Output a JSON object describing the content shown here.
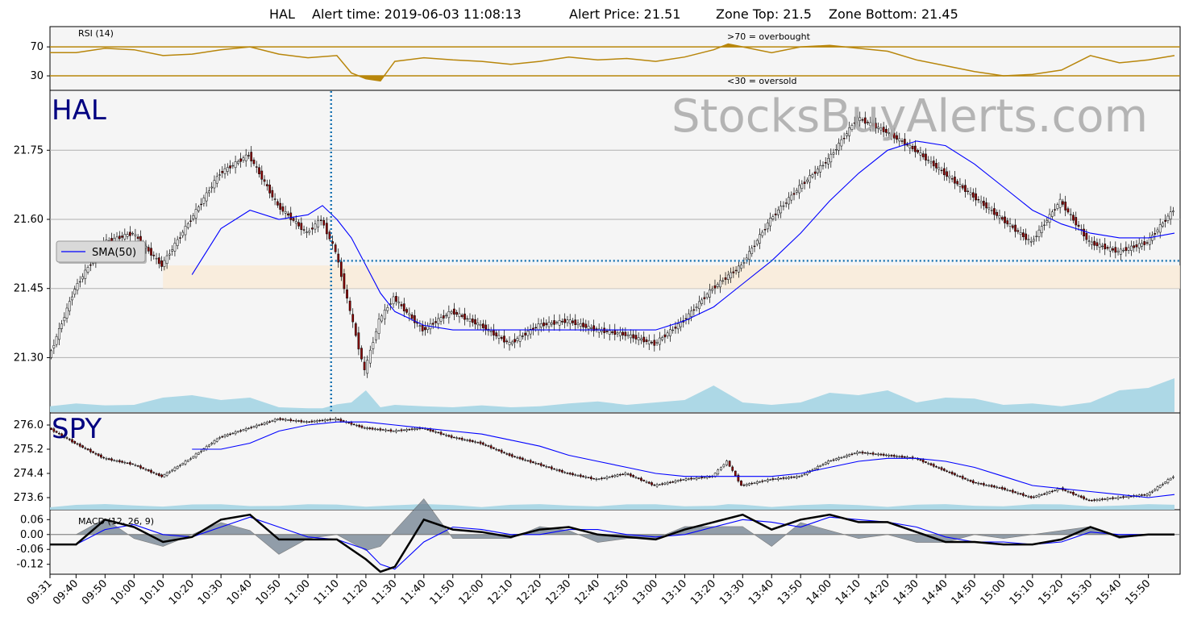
{
  "title": {
    "symbol": "HAL",
    "alert_time": "Alert time: 2019-06-03 11:08:13",
    "alert_price": "Alert Price: 21.51",
    "zone_top": "Zone Top: 21.5",
    "zone_bottom": "Zone Bottom: 21.45"
  },
  "watermark": "StocksBuyAlerts.com",
  "colors": {
    "sma": "#0000ff",
    "alert_line": "#1f77b4",
    "zone": "#faebd7",
    "volume": "#add8e6",
    "rsi": "#b8860b",
    "macd": "#000000",
    "signal": "#0000ff",
    "hist": "#708090",
    "panel_bg": "#f5f5f5",
    "candle_down": "#8b0000"
  },
  "chart_data": [
    {
      "type": "line",
      "name": "rsi-panel",
      "label": "RSI (14)",
      "annot_over": ">70 = overbought",
      "annot_under": "<30 = oversold",
      "yticks": [
        "70",
        "30"
      ],
      "ylim": [
        10,
        98
      ],
      "levels": [
        70,
        30
      ],
      "x": [
        "09:31",
        "09:40",
        "09:50",
        "10:00",
        "10:10",
        "10:20",
        "10:30",
        "10:40",
        "10:50",
        "11:00",
        "11:10",
        "11:15",
        "11:20",
        "11:25",
        "11:30",
        "11:40",
        "11:50",
        "12:00",
        "12:10",
        "12:20",
        "12:30",
        "12:40",
        "12:50",
        "13:00",
        "13:10",
        "13:20",
        "13:25",
        "13:30",
        "13:40",
        "13:50",
        "14:00",
        "14:10",
        "14:20",
        "14:30",
        "14:40",
        "14:50",
        "15:00",
        "15:10",
        "15:20",
        "15:30",
        "15:40",
        "15:50",
        "15:59"
      ],
      "values": [
        62,
        62,
        68,
        66,
        58,
        60,
        66,
        70,
        60,
        55,
        58,
        34,
        26,
        23,
        50,
        55,
        52,
        50,
        46,
        50,
        56,
        52,
        54,
        50,
        56,
        66,
        74,
        70,
        62,
        70,
        72,
        68,
        64,
        52,
        44,
        36,
        30,
        32,
        38,
        58,
        48,
        52,
        58
      ]
    },
    {
      "type": "line",
      "name": "hal-panel",
      "symbol": "HAL",
      "legend": "SMA(50)",
      "yticks": [
        "21.75",
        "21.60",
        "21.45",
        "21.30"
      ],
      "ylim": [
        21.18,
        21.88
      ],
      "alert_price": 21.51,
      "zone": [
        21.45,
        21.5
      ],
      "x": [
        "09:31",
        "09:40",
        "09:50",
        "10:00",
        "10:10",
        "10:20",
        "10:30",
        "10:40",
        "10:50",
        "11:00",
        "11:05",
        "11:10",
        "11:15",
        "11:20",
        "11:25",
        "11:30",
        "11:40",
        "11:50",
        "12:00",
        "12:10",
        "12:20",
        "12:30",
        "12:40",
        "12:50",
        "13:00",
        "13:10",
        "13:20",
        "13:30",
        "13:40",
        "13:50",
        "14:00",
        "14:10",
        "14:20",
        "14:30",
        "14:40",
        "14:50",
        "15:00",
        "15:10",
        "15:20",
        "15:30",
        "15:40",
        "15:50",
        "15:59"
      ],
      "close": [
        21.3,
        21.45,
        21.55,
        21.57,
        21.5,
        21.6,
        21.7,
        21.74,
        21.63,
        21.57,
        21.6,
        21.53,
        21.4,
        21.27,
        21.38,
        21.43,
        21.36,
        21.4,
        21.37,
        21.33,
        21.37,
        21.38,
        21.36,
        21.35,
        21.33,
        21.38,
        21.45,
        21.5,
        21.6,
        21.67,
        21.73,
        21.82,
        21.79,
        21.75,
        21.7,
        21.65,
        21.6,
        21.55,
        21.64,
        21.55,
        21.53,
        21.55,
        21.62
      ],
      "sma": [
        null,
        null,
        null,
        null,
        null,
        21.48,
        21.58,
        21.62,
        21.6,
        21.61,
        21.63,
        21.6,
        21.56,
        21.5,
        21.44,
        21.4,
        21.37,
        21.36,
        21.36,
        21.36,
        21.36,
        21.36,
        21.36,
        21.36,
        21.36,
        21.38,
        21.41,
        21.46,
        21.51,
        21.57,
        21.64,
        21.7,
        21.75,
        21.77,
        21.76,
        21.72,
        21.67,
        21.62,
        21.59,
        21.57,
        21.56,
        21.56,
        21.57
      ],
      "volume": [
        0.12,
        0.18,
        0.14,
        0.15,
        0.3,
        0.35,
        0.25,
        0.3,
        0.1,
        0.08,
        0.08,
        0.16,
        0.2,
        0.45,
        0.1,
        0.15,
        0.12,
        0.1,
        0.14,
        0.1,
        0.12,
        0.18,
        0.22,
        0.15,
        0.2,
        0.25,
        0.55,
        0.2,
        0.15,
        0.2,
        0.4,
        0.35,
        0.45,
        0.2,
        0.3,
        0.28,
        0.15,
        0.18,
        0.12,
        0.2,
        0.45,
        0.5,
        0.7
      ]
    },
    {
      "type": "line",
      "name": "spy-panel",
      "symbol": "SPY",
      "yticks": [
        "276.0",
        "275.2",
        "274.4",
        "273.6"
      ],
      "ylim": [
        273.2,
        276.4
      ],
      "x": [
        "09:31",
        "09:40",
        "09:50",
        "10:00",
        "10:10",
        "10:20",
        "10:30",
        "10:40",
        "10:50",
        "11:00",
        "11:10",
        "11:20",
        "11:30",
        "11:40",
        "11:50",
        "12:00",
        "12:10",
        "12:20",
        "12:30",
        "12:40",
        "12:50",
        "13:00",
        "13:10",
        "13:20",
        "13:25",
        "13:30",
        "13:40",
        "13:50",
        "14:00",
        "14:10",
        "14:20",
        "14:30",
        "14:40",
        "14:50",
        "15:00",
        "15:10",
        "15:20",
        "15:30",
        "15:40",
        "15:50",
        "15:59"
      ],
      "close": [
        275.9,
        275.4,
        274.9,
        274.7,
        274.3,
        274.9,
        275.6,
        275.9,
        276.2,
        276.1,
        276.2,
        275.9,
        275.8,
        275.9,
        275.6,
        275.4,
        275.0,
        274.7,
        274.4,
        274.2,
        274.4,
        274.0,
        274.2,
        274.3,
        274.8,
        274.0,
        274.2,
        274.3,
        274.8,
        275.1,
        275.0,
        274.9,
        274.5,
        274.1,
        273.9,
        273.6,
        273.9,
        273.5,
        273.6,
        273.7,
        274.3
      ],
      "sma": [
        null,
        null,
        null,
        null,
        null,
        275.2,
        275.2,
        275.4,
        275.8,
        276.0,
        276.1,
        276.1,
        276.0,
        275.9,
        275.8,
        275.7,
        275.5,
        275.3,
        275.0,
        274.8,
        274.6,
        274.4,
        274.3,
        274.3,
        274.3,
        274.3,
        274.3,
        274.4,
        274.6,
        274.8,
        274.9,
        274.9,
        274.8,
        274.6,
        274.3,
        274.0,
        273.9,
        273.8,
        273.7,
        273.6,
        273.7
      ]
    },
    {
      "type": "line",
      "name": "macd-panel",
      "label": "MACD (12, 26, 9)",
      "yticks": [
        "0.06",
        "0.00",
        "-0.06",
        "-0.12"
      ],
      "ylim": [
        -0.16,
        0.1
      ],
      "x": [
        "09:31",
        "09:40",
        "09:50",
        "10:00",
        "10:10",
        "10:20",
        "10:30",
        "10:40",
        "10:50",
        "11:00",
        "11:10",
        "11:20",
        "11:25",
        "11:30",
        "11:40",
        "11:50",
        "12:00",
        "12:10",
        "12:20",
        "12:30",
        "12:40",
        "12:50",
        "13:00",
        "13:10",
        "13:20",
        "13:30",
        "13:40",
        "13:50",
        "14:00",
        "14:10",
        "14:20",
        "14:30",
        "14:40",
        "14:50",
        "15:00",
        "15:10",
        "15:20",
        "15:30",
        "15:40",
        "15:50",
        "15:59"
      ],
      "macd": [
        -0.04,
        -0.04,
        0.06,
        0.03,
        -0.03,
        -0.01,
        0.06,
        0.08,
        -0.02,
        -0.02,
        -0.02,
        -0.1,
        -0.15,
        -0.13,
        0.06,
        0.02,
        0.01,
        -0.01,
        0.02,
        0.03,
        0.0,
        -0.01,
        -0.02,
        0.02,
        0.05,
        0.08,
        0.02,
        0.06,
        0.08,
        0.05,
        0.05,
        0.01,
        -0.03,
        -0.03,
        -0.04,
        -0.04,
        -0.02,
        0.03,
        -0.01,
        0.0,
        0.0
      ],
      "signal": [
        -0.04,
        -0.04,
        0.02,
        0.04,
        0.0,
        -0.01,
        0.03,
        0.07,
        0.03,
        -0.01,
        -0.02,
        -0.06,
        -0.12,
        -0.14,
        -0.03,
        0.03,
        0.02,
        0.0,
        0.0,
        0.02,
        0.02,
        0.0,
        -0.01,
        0.0,
        0.03,
        0.06,
        0.05,
        0.03,
        0.07,
        0.06,
        0.05,
        0.03,
        -0.01,
        -0.03,
        -0.03,
        -0.04,
        -0.03,
        0.01,
        0.0,
        0.0,
        0.0
      ]
    }
  ],
  "x_axis": {
    "ticks": [
      "09:31",
      "09:40",
      "09:50",
      "10:00",
      "10:10",
      "10:20",
      "10:30",
      "10:40",
      "10:50",
      "11:00",
      "11:10",
      "11:20",
      "11:30",
      "11:40",
      "11:50",
      "12:00",
      "12:10",
      "12:20",
      "12:30",
      "12:40",
      "12:50",
      "13:00",
      "13:10",
      "13:20",
      "13:30",
      "13:40",
      "13:50",
      "14:00",
      "14:10",
      "14:20",
      "14:30",
      "14:40",
      "14:50",
      "15:00",
      "15:10",
      "15:20",
      "15:30",
      "15:40",
      "15:50"
    ],
    "alert_time": "11:08"
  }
}
